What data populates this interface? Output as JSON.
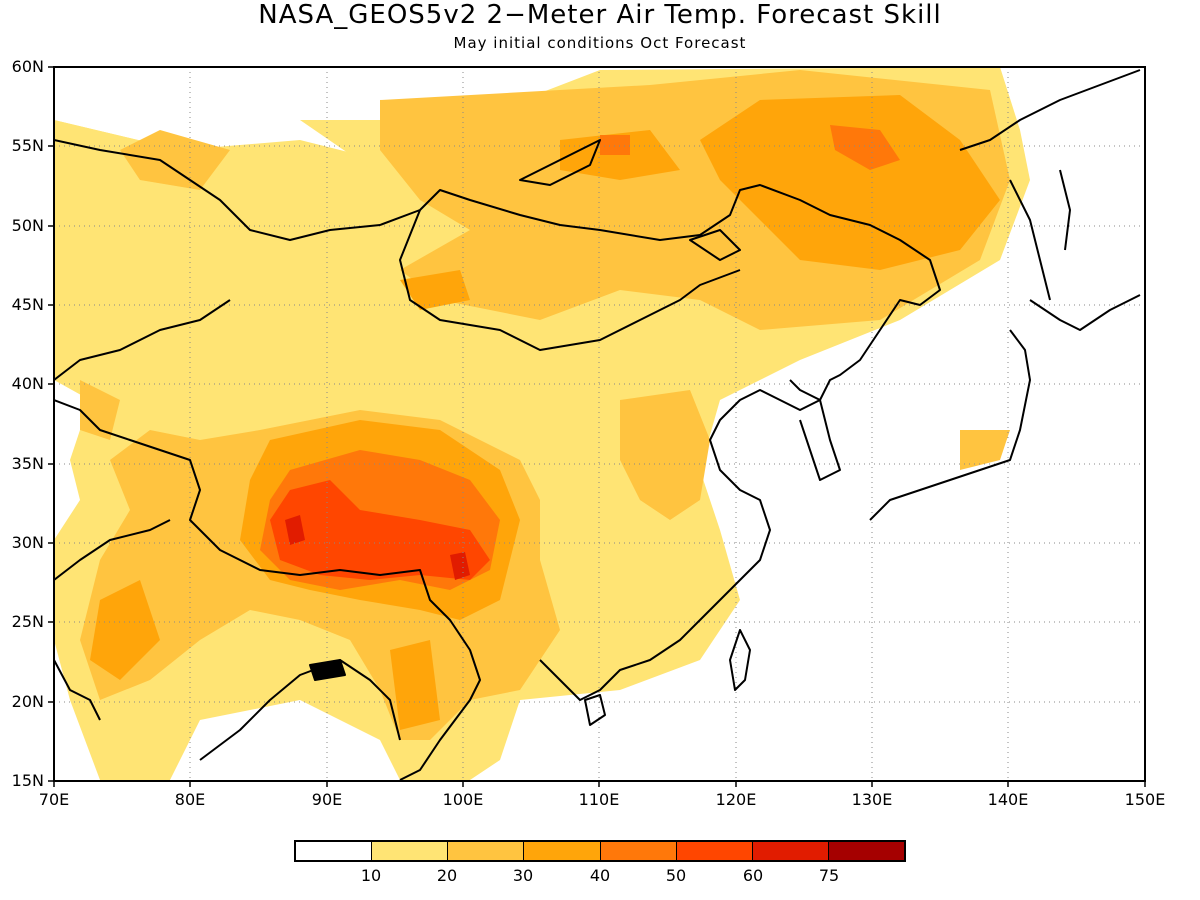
{
  "title": "NASA_GEOS5v2 2−Meter Air Temp. Forecast Skill",
  "subtitle": "May initial conditions  Oct Forecast",
  "map": {
    "lon_range": [
      70,
      150
    ],
    "lat_range": [
      15,
      60
    ],
    "lat_ticks": [
      "60N",
      "55N",
      "50N",
      "45N",
      "40N",
      "35N",
      "30N",
      "25N",
      "20N",
      "15N"
    ],
    "lon_ticks": [
      "70E",
      "80E",
      "90E",
      "100E",
      "110E",
      "120E",
      "130E",
      "140E",
      "150E"
    ],
    "grid": "dotted every 10 degrees longitude and 5 degrees latitude"
  },
  "colorbar": {
    "colors": [
      "#ffffff",
      "#ffe474",
      "#ffc440",
      "#ffa50a",
      "#ff780a",
      "#ff4600",
      "#e11c00",
      "#a50000"
    ],
    "labels": [
      "10",
      "20",
      "30",
      "40",
      "50",
      "60",
      "75"
    ]
  }
}
